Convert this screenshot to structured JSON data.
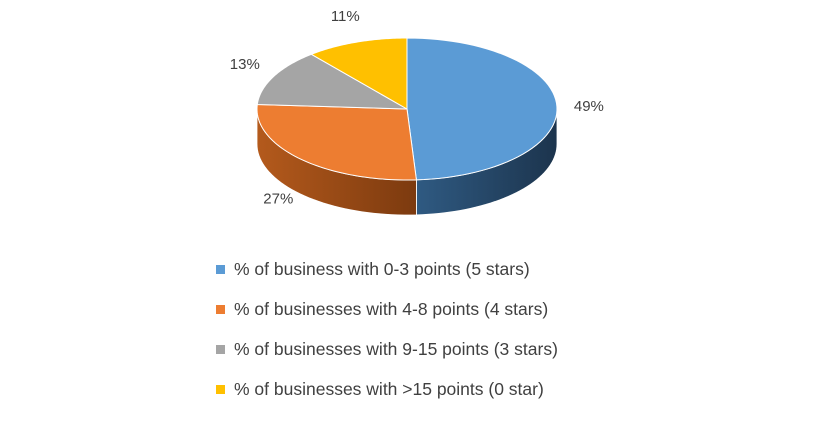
{
  "chart_data": {
    "type": "pie",
    "style": "3d",
    "categories": [
      "% of business with 0-3 points (5 stars)",
      "% of businesses with 4-8 points (4 stars)",
      "% of businesses with 9-15 points (3 stars)",
      "% of businesses with >15 points (0 star)"
    ],
    "values": [
      49,
      27,
      13,
      11
    ],
    "data_labels": [
      "49%",
      "27%",
      "13%",
      "11%"
    ],
    "colors": [
      "#5B9BD5",
      "#ED7D31",
      "#A5A5A5",
      "#FFC000"
    ],
    "legend_position": "bottom",
    "title": ""
  }
}
